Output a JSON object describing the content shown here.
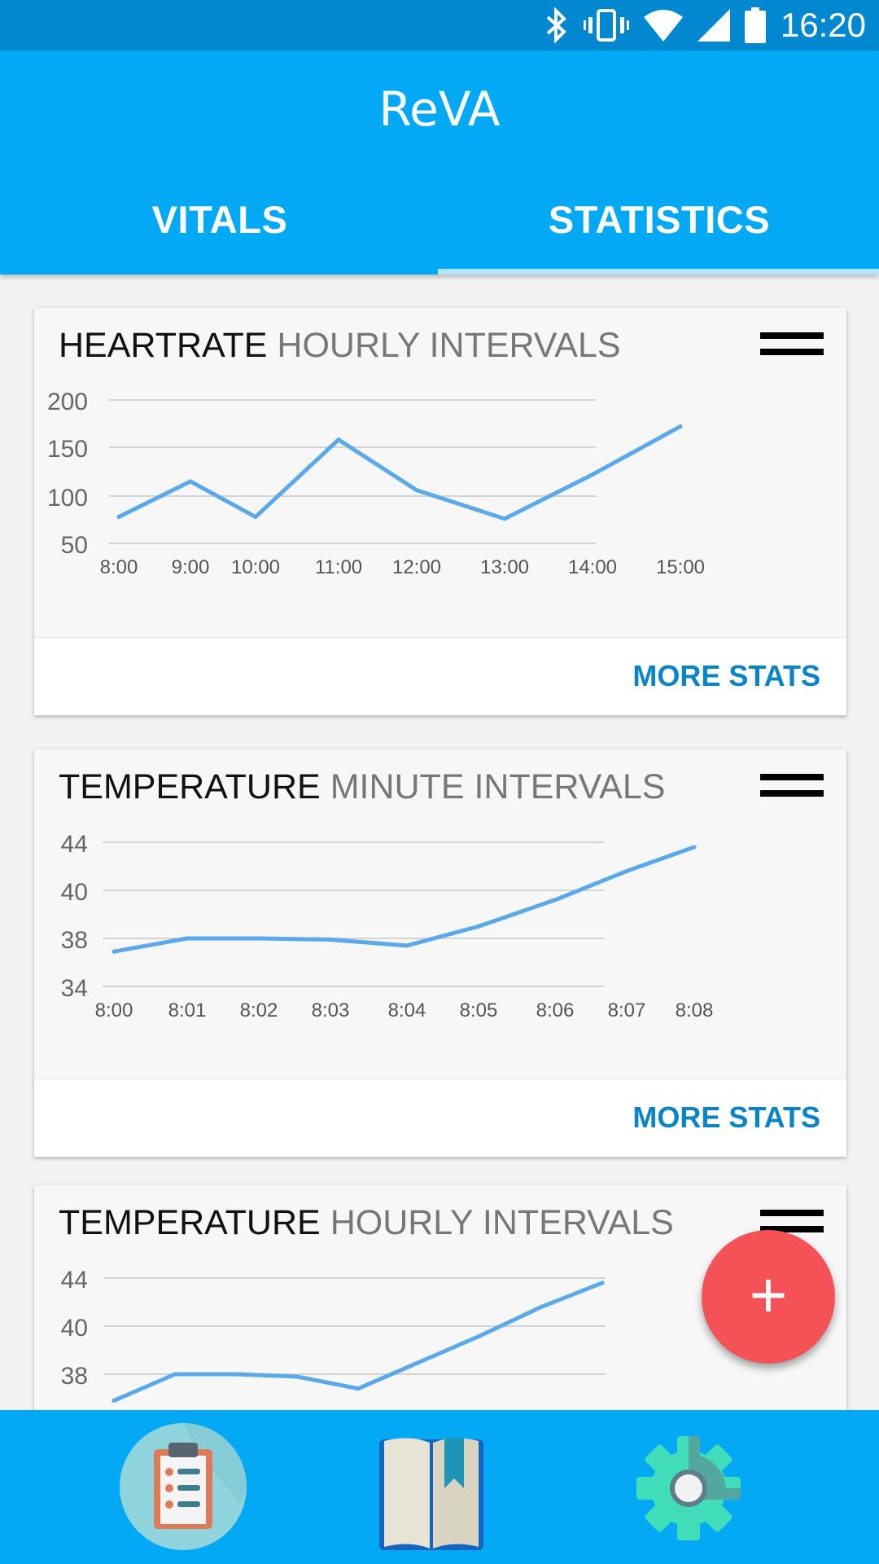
{
  "status_bar": {
    "time": "16:20",
    "icons": [
      "bluetooth-icon",
      "vibrate-icon",
      "wifi-icon",
      "cell-signal-icon",
      "battery-icon"
    ]
  },
  "app": {
    "title": "ReVA"
  },
  "tabs": [
    {
      "label": "VITALS",
      "selected": false
    },
    {
      "label": "STATISTICS",
      "selected": true
    }
  ],
  "colors": {
    "status_bar": "#0288d1",
    "app_bar": "#03a9f4",
    "tab_indicator": "#b3e5fc",
    "line": "#5aa9ea",
    "link": "#0a84c9",
    "fab": "#f45257"
  },
  "cards": [
    {
      "title": "HEARTRATE",
      "subtitle": "HOURLY INTERVALS",
      "action": "MORE STATS",
      "chart_data": {
        "type": "line",
        "x": [
          "8:00",
          "9:00",
          "10:00",
          "11:00",
          "12:00",
          "13:00",
          "14:00",
          "15:00"
        ],
        "series": [
          {
            "values": [
              78,
              115,
              78,
              158,
              106,
              76,
              122,
              172
            ]
          }
        ],
        "y_ticks": [
          200,
          150,
          100,
          50
        ],
        "ylim": [
          50,
          200
        ],
        "grid": true
      }
    },
    {
      "title": "TEMPERATURE",
      "subtitle": "MINUTE INTERVALS",
      "action": "MORE STATS",
      "chart_data": {
        "type": "line",
        "x": [
          "8:00",
          "8:01",
          "8:02",
          "8:03",
          "8:04",
          "8:05",
          "8:06",
          "8:07",
          "8:08"
        ],
        "series": [
          {
            "values": [
              36.9,
              38.0,
              38.0,
              37.9,
              37.4,
              38.5,
              39.6,
              41.6,
              43.6
            ]
          }
        ],
        "y_ticks": [
          44,
          40,
          38,
          34
        ],
        "ylim": [
          34,
          44
        ],
        "grid": true
      }
    },
    {
      "title": "TEMPERATURE",
      "subtitle": "HOURLY INTERVALS",
      "chart_data": {
        "type": "line",
        "series": [
          {
            "values": [
              36.9,
              38.0,
              38.0,
              37.9,
              37.4,
              38.5,
              39.6,
              41.6,
              43.6
            ]
          }
        ],
        "y_ticks": [
          44,
          40,
          38
        ],
        "ylim": [
          34,
          44
        ],
        "grid": true
      }
    }
  ],
  "fab": {
    "label": "+"
  },
  "bottom_nav": [
    {
      "icon": "clipboard-icon"
    },
    {
      "icon": "book-icon"
    },
    {
      "icon": "gear-icon"
    }
  ]
}
